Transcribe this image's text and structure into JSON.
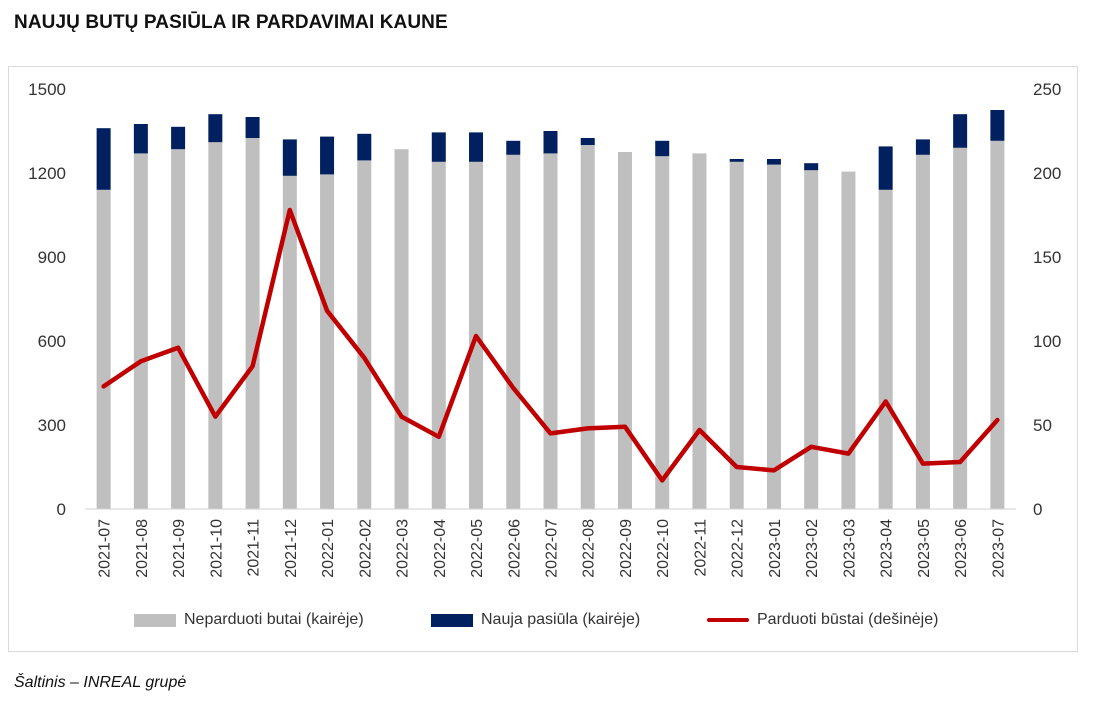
{
  "title": "NAUJŲ BUTŲ PASIŪLA IR PARDAVIMAI KAUNE",
  "source": "Šaltinis – INREAL grupė",
  "chart_data": {
    "type": "bar",
    "subtype": "stacked bar + line (dual axis)",
    "categories": [
      "2021-07",
      "2021-08",
      "2021-09",
      "2021-10",
      "2021-11",
      "2021-12",
      "2022-01",
      "2022-02",
      "2022-03",
      "2022-04",
      "2022-05",
      "2022-06",
      "2022-07",
      "2022-08",
      "2022-09",
      "2022-10",
      "2022-11",
      "2022-12",
      "2023-01",
      "2023-02",
      "2023-03",
      "2023-04",
      "2023-05",
      "2023-06",
      "2023-07"
    ],
    "series": [
      {
        "name": "Neparduoti butai (kairėje)",
        "type": "bar",
        "axis": "left",
        "color": "#bfbfbf",
        "values": [
          1140,
          1270,
          1285,
          1310,
          1325,
          1190,
          1195,
          1245,
          1285,
          1240,
          1240,
          1265,
          1270,
          1300,
          1275,
          1260,
          1270,
          1240,
          1230,
          1210,
          1205,
          1140,
          1265,
          1290,
          1315
        ]
      },
      {
        "name": "Nauja pasiūla (kairėje)",
        "type": "bar",
        "axis": "left",
        "color": "#002060",
        "values": [
          220,
          105,
          80,
          100,
          75,
          130,
          135,
          95,
          0,
          105,
          105,
          50,
          80,
          25,
          0,
          55,
          0,
          10,
          20,
          25,
          0,
          155,
          55,
          120,
          110
        ]
      },
      {
        "name": "Parduoti būstai (dešinėje)",
        "type": "line",
        "axis": "right",
        "color": "#c00000",
        "values": [
          73,
          88,
          96,
          55,
          85,
          178,
          118,
          90,
          55,
          43,
          103,
          72,
          45,
          48,
          49,
          17,
          47,
          25,
          23,
          37,
          33,
          64,
          27,
          28,
          53
        ]
      }
    ],
    "y_left": {
      "min": 0,
      "max": 1500,
      "ticks": [
        "0",
        "300",
        "600",
        "900",
        "1200",
        "1500"
      ]
    },
    "y_right": {
      "min": 0,
      "max": 250,
      "ticks": [
        "0",
        "50",
        "100",
        "150",
        "200",
        "250"
      ]
    },
    "grid": false,
    "legend_position": "bottom"
  }
}
